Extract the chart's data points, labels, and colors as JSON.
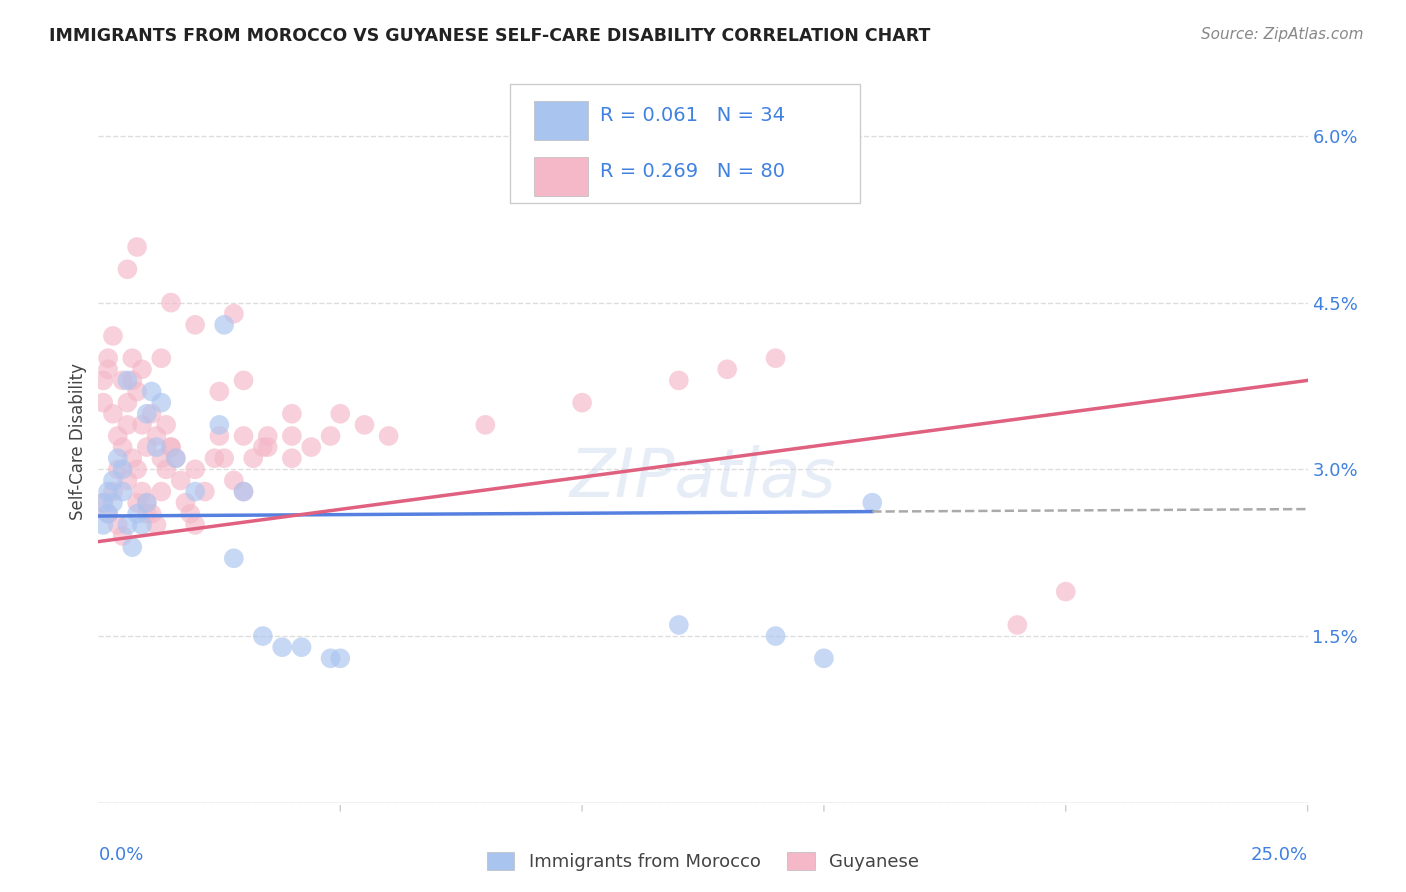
{
  "title": "IMMIGRANTS FROM MOROCCO VS GUYANESE SELF-CARE DISABILITY CORRELATION CHART",
  "source": "Source: ZipAtlas.com",
  "ylabel": "Self-Care Disability",
  "xlim": [
    0.0,
    0.25
  ],
  "ylim": [
    0.0,
    0.065
  ],
  "legend_r1": "R = 0.061",
  "legend_n1": "N = 34",
  "legend_r2": "R = 0.269",
  "legend_n2": "N = 80",
  "color_morocco": "#aac4f0",
  "color_guyanese": "#f4b8c8",
  "color_morocco_line": "#5580e0",
  "color_guyanese_line": "#e06080",
  "color_dashed": "#aaaaaa",
  "color_text_blue": "#4080e0",
  "background": "#ffffff",
  "grid_color": "#dddddd",
  "morocco_x": [
    0.001,
    0.001,
    0.002,
    0.002,
    0.003,
    0.003,
    0.004,
    0.005,
    0.005,
    0.006,
    0.006,
    0.007,
    0.008,
    0.009,
    0.01,
    0.01,
    0.011,
    0.012,
    0.013,
    0.016,
    0.02,
    0.025,
    0.026,
    0.028,
    0.03,
    0.034,
    0.038,
    0.042,
    0.048,
    0.05,
    0.12,
    0.14,
    0.15,
    0.16
  ],
  "morocco_y": [
    0.027,
    0.025,
    0.028,
    0.026,
    0.029,
    0.027,
    0.031,
    0.03,
    0.028,
    0.025,
    0.038,
    0.023,
    0.026,
    0.025,
    0.027,
    0.035,
    0.037,
    0.032,
    0.036,
    0.031,
    0.028,
    0.034,
    0.043,
    0.022,
    0.028,
    0.015,
    0.014,
    0.014,
    0.013,
    0.013,
    0.016,
    0.015,
    0.013,
    0.027
  ],
  "guyanese_x": [
    0.001,
    0.001,
    0.002,
    0.002,
    0.003,
    0.003,
    0.004,
    0.004,
    0.005,
    0.005,
    0.006,
    0.006,
    0.007,
    0.007,
    0.008,
    0.008,
    0.009,
    0.009,
    0.01,
    0.01,
    0.011,
    0.012,
    0.013,
    0.013,
    0.014,
    0.015,
    0.016,
    0.017,
    0.018,
    0.019,
    0.02,
    0.022,
    0.024,
    0.026,
    0.028,
    0.028,
    0.03,
    0.032,
    0.034,
    0.04,
    0.044,
    0.048,
    0.05,
    0.055,
    0.06,
    0.08,
    0.1,
    0.12,
    0.13,
    0.14,
    0.001,
    0.002,
    0.003,
    0.004,
    0.005,
    0.006,
    0.007,
    0.008,
    0.009,
    0.01,
    0.011,
    0.012,
    0.013,
    0.014,
    0.015,
    0.02,
    0.025,
    0.03,
    0.035,
    0.04,
    0.006,
    0.008,
    0.015,
    0.02,
    0.025,
    0.03,
    0.035,
    0.04,
    0.19,
    0.2
  ],
  "guyanese_y": [
    0.027,
    0.038,
    0.026,
    0.04,
    0.028,
    0.042,
    0.025,
    0.03,
    0.024,
    0.032,
    0.029,
    0.036,
    0.031,
    0.038,
    0.03,
    0.027,
    0.028,
    0.034,
    0.027,
    0.026,
    0.026,
    0.025,
    0.028,
    0.04,
    0.03,
    0.032,
    0.031,
    0.029,
    0.027,
    0.026,
    0.025,
    0.028,
    0.031,
    0.031,
    0.029,
    0.044,
    0.028,
    0.031,
    0.032,
    0.031,
    0.032,
    0.033,
    0.035,
    0.034,
    0.033,
    0.034,
    0.036,
    0.038,
    0.039,
    0.04,
    0.036,
    0.039,
    0.035,
    0.033,
    0.038,
    0.034,
    0.04,
    0.037,
    0.039,
    0.032,
    0.035,
    0.033,
    0.031,
    0.034,
    0.032,
    0.03,
    0.033,
    0.033,
    0.033,
    0.035,
    0.048,
    0.05,
    0.045,
    0.043,
    0.037,
    0.038,
    0.032,
    0.033,
    0.016,
    0.019
  ]
}
